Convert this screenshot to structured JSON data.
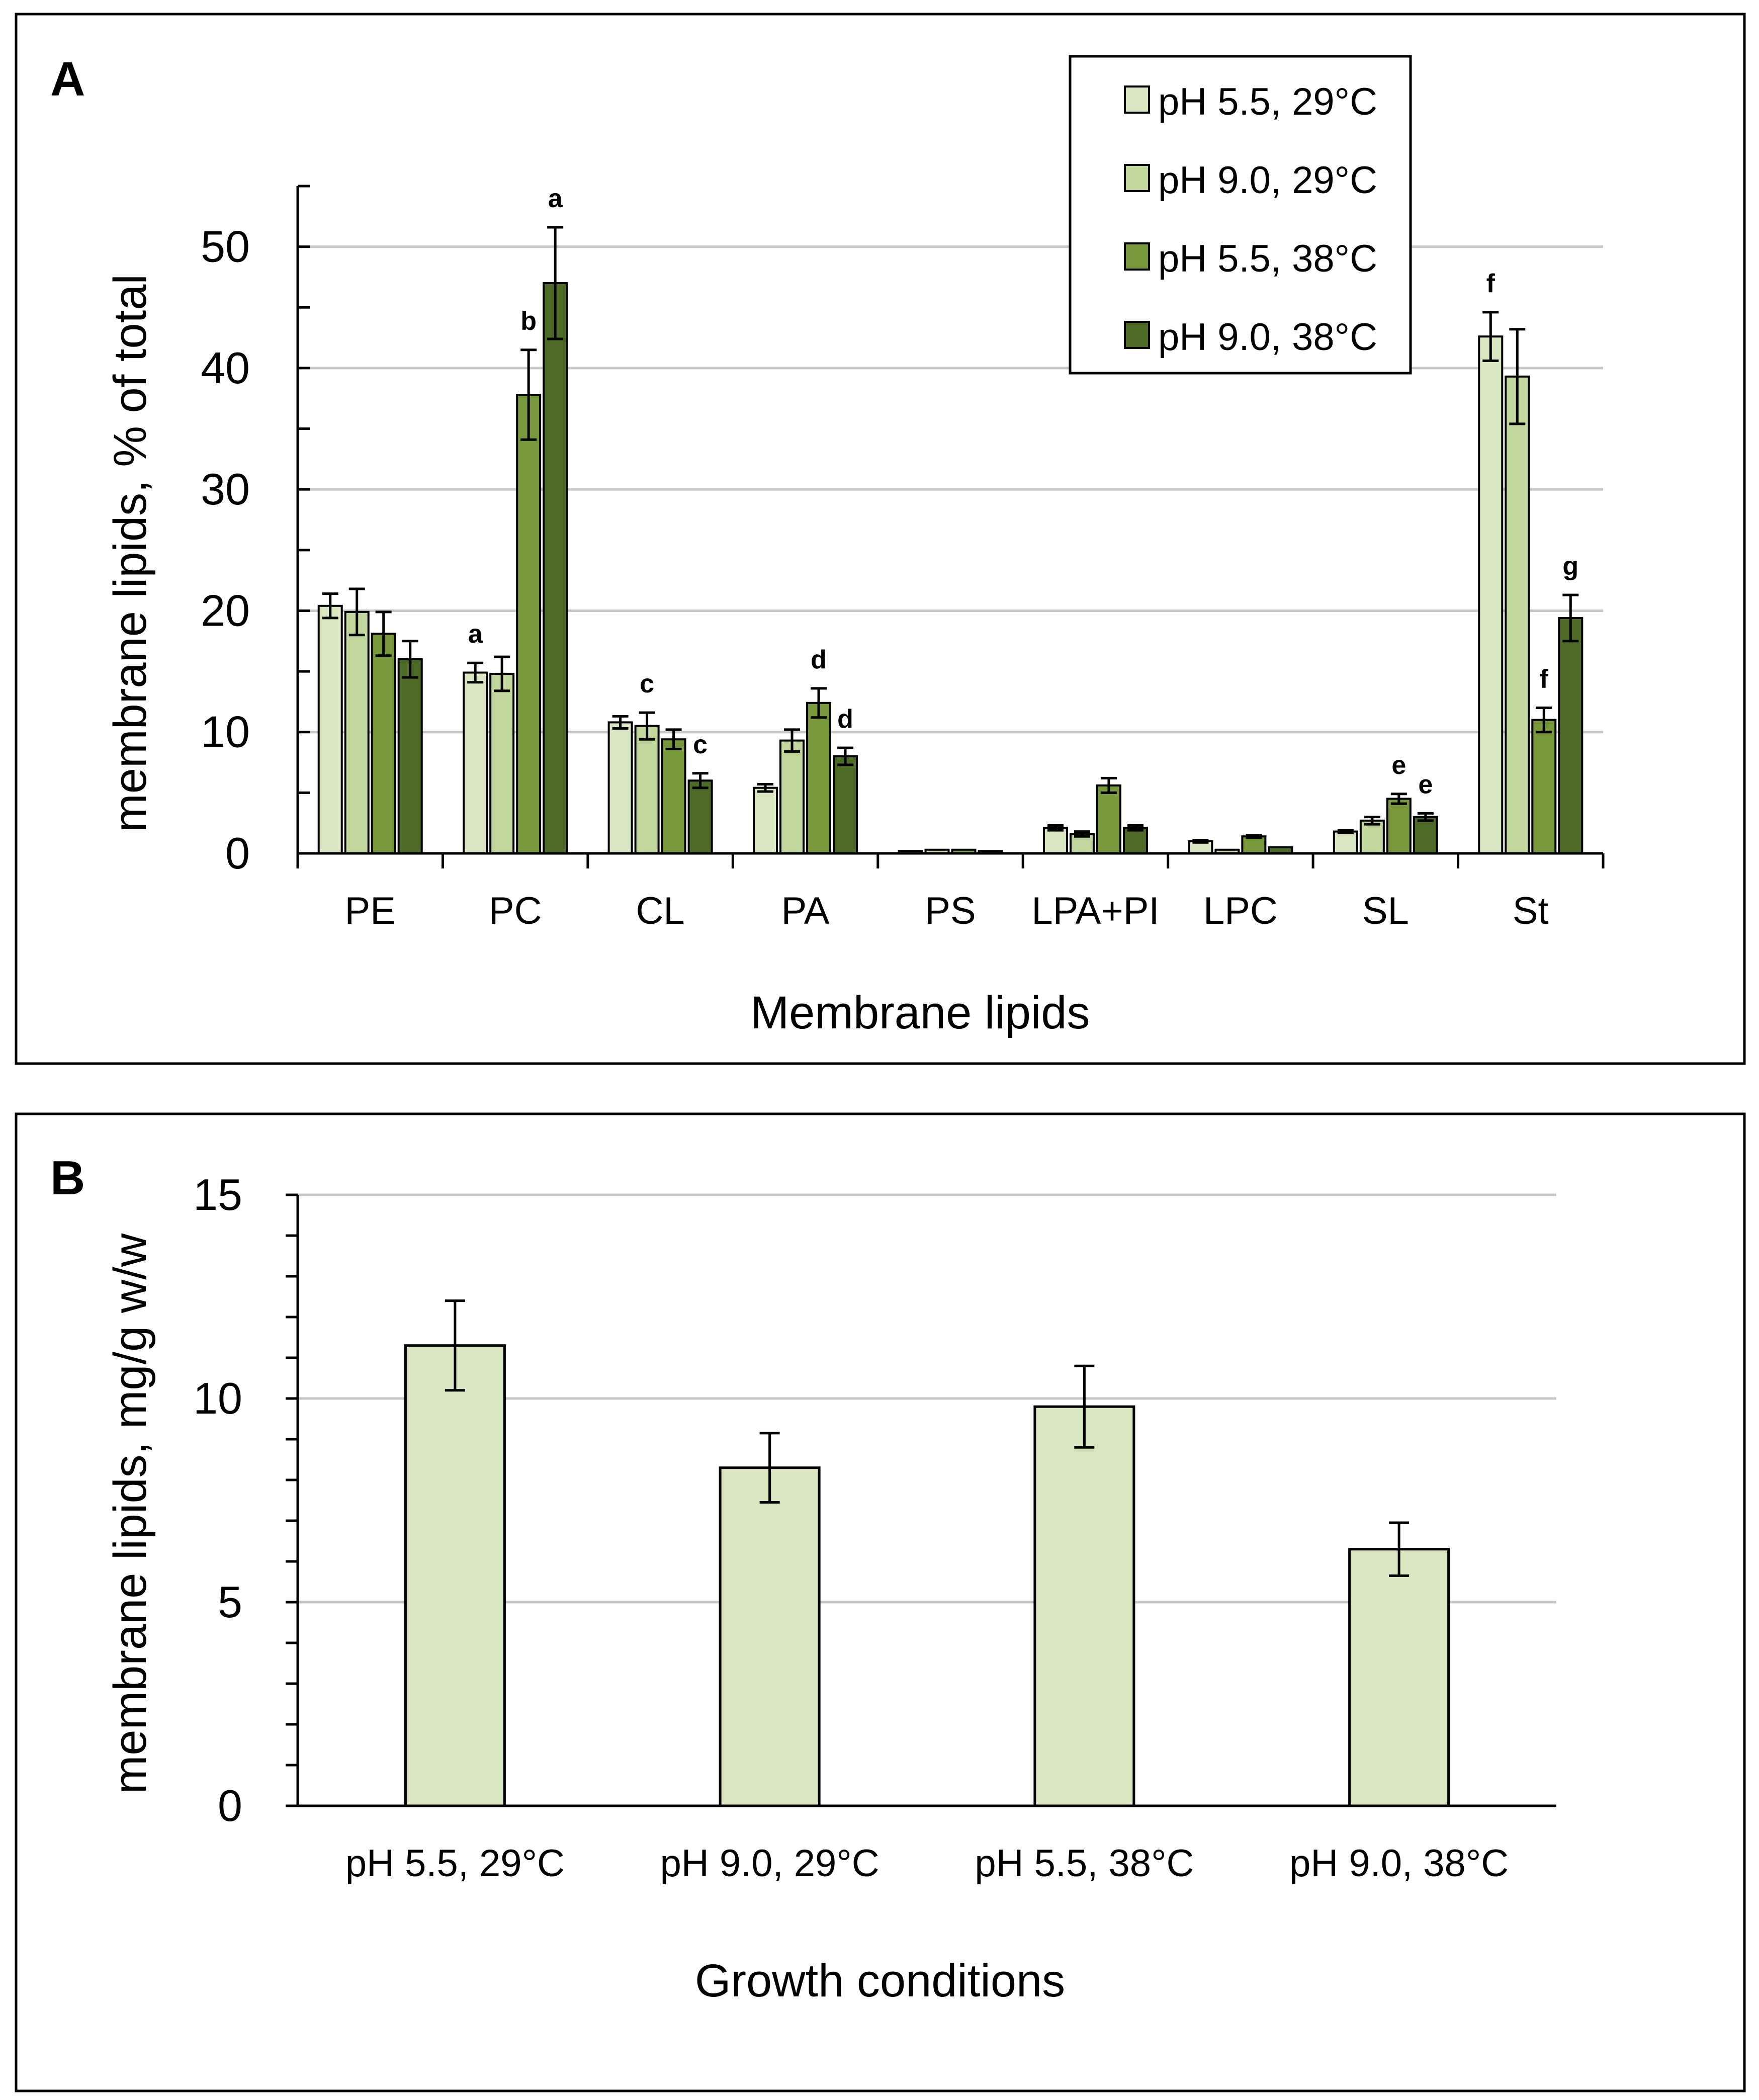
{
  "chart_data": [
    {
      "panel": "A",
      "type": "bar",
      "xlabel": "Membrane lipids",
      "ylabel": "membrane lipids, % of total",
      "ylim": [
        0,
        55
      ],
      "yticks": [
        0,
        10,
        20,
        30,
        40,
        50
      ],
      "grid": true,
      "legend_position": "top-right",
      "categories": [
        "PE",
        "PC",
        "CL",
        "PA",
        "PS",
        "LPA+PI",
        "LPC",
        "SL",
        "St"
      ],
      "series": [
        {
          "name": "pH 5.5, 29°C",
          "color": "#dae6c2",
          "values": [
            20.4,
            14.9,
            10.8,
            5.4,
            0.2,
            2.1,
            1.0,
            1.8,
            42.6
          ],
          "errors": [
            1.0,
            0.8,
            0.5,
            0.3,
            0.05,
            0.2,
            0.1,
            0.1,
            2.0
          ]
        },
        {
          "name": "pH 9.0, 29°C",
          "color": "#c2d79d",
          "values": [
            19.9,
            14.8,
            10.5,
            9.3,
            0.3,
            1.6,
            0.3,
            2.7,
            39.3
          ],
          "errors": [
            1.9,
            1.4,
            1.1,
            0.9,
            0.05,
            0.2,
            0.05,
            0.3,
            3.9
          ]
        },
        {
          "name": "pH 5.5, 38°C",
          "color": "#77983b",
          "values": [
            18.1,
            37.8,
            9.4,
            12.4,
            0.3,
            5.6,
            1.4,
            4.5,
            11.0
          ],
          "errors": [
            1.8,
            3.7,
            0.8,
            1.2,
            0.05,
            0.6,
            0.1,
            0.4,
            1.0
          ]
        },
        {
          "name": "pH 9.0, 38°C",
          "color": "#4e6a27",
          "values": [
            16.0,
            47.0,
            6.0,
            8.0,
            0.2,
            2.1,
            0.5,
            3.0,
            19.4
          ],
          "errors": [
            1.5,
            4.6,
            0.6,
            0.7,
            0.05,
            0.2,
            0.05,
            0.3,
            1.9
          ]
        }
      ],
      "annotations": [
        {
          "category": "PC",
          "series": 0,
          "text": "a"
        },
        {
          "category": "PC",
          "series": 2,
          "text": "b"
        },
        {
          "category": "PC",
          "series": 3,
          "text": "a"
        },
        {
          "category": "CL",
          "series": 1,
          "text": "c"
        },
        {
          "category": "CL",
          "series": 3,
          "text": "c"
        },
        {
          "category": "PA",
          "series": 2,
          "text": "d"
        },
        {
          "category": "PA",
          "series": 3,
          "text": "d"
        },
        {
          "category": "SL",
          "series": 2,
          "text": "e"
        },
        {
          "category": "SL",
          "series": 3,
          "text": "e"
        },
        {
          "category": "St",
          "series": 0,
          "text": "f"
        },
        {
          "category": "St",
          "series": 2,
          "text": "f"
        },
        {
          "category": "St",
          "series": 3,
          "text": "g"
        }
      ]
    },
    {
      "panel": "B",
      "type": "bar",
      "xlabel": "Growth conditions",
      "ylabel": "membrane lipids, mg/g w/w",
      "ylim": [
        0,
        15
      ],
      "yticks": [
        0,
        5,
        10,
        15
      ],
      "grid": true,
      "categories": [
        "pH 5.5, 29°C",
        "pH 9.0, 29°C",
        "pH 5.5, 38°C",
        "pH 9.0, 38°C"
      ],
      "values": [
        11.3,
        8.3,
        9.8,
        6.3
      ],
      "errors": [
        1.1,
        0.85,
        1.0,
        0.65
      ],
      "color": "#dae6c2"
    }
  ]
}
